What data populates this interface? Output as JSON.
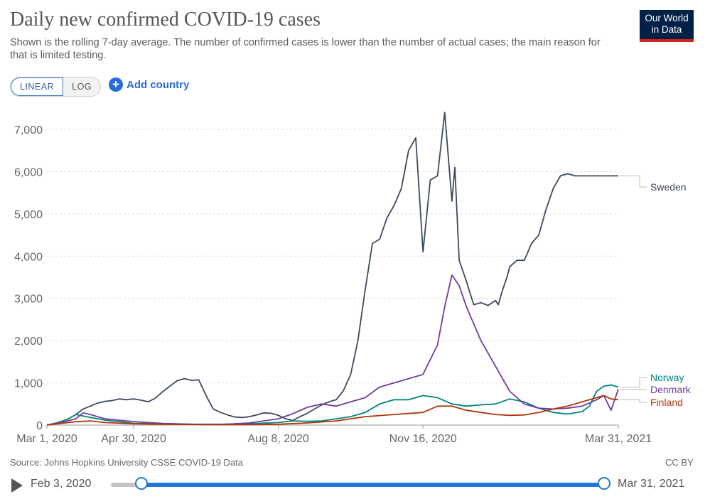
{
  "header": {
    "title": "Daily new confirmed COVID-19 cases",
    "subtitle": "Shown is the rolling 7-day average. The number of confirmed cases is lower than the number of actual cases; the main reason for that is limited testing."
  },
  "logo": {
    "line1": "Our World",
    "line2": "in Data"
  },
  "controls": {
    "linear_label": "LINEAR",
    "log_label": "LOG",
    "add_country_label": "Add country",
    "add_icon": "+"
  },
  "footer": {
    "source": "Source: Johns Hopkins University CSSE COVID-19 Data",
    "license": "CC BY"
  },
  "timeline": {
    "start_label": "Feb 3, 2020",
    "end_label": "Mar 31, 2021",
    "selected_start_fraction": 0.062
  },
  "colors": {
    "Sweden": "#3c4a5c",
    "Norway": "#00847e",
    "Denmark": "#6e3e9d",
    "Finland": "#b13507",
    "grid": "#d9d9d9",
    "axis": "#666666"
  },
  "chart_data": {
    "type": "line",
    "title": "Daily new confirmed COVID-19 cases",
    "x_unit": "days since Mar 1, 2020",
    "x_range": [
      0,
      395
    ],
    "ylim": [
      0,
      7000
    ],
    "y_ticks": [
      0,
      1000,
      2000,
      3000,
      4000,
      5000,
      6000,
      7000
    ],
    "y_tick_labels": [
      "0",
      "1,000",
      "2,000",
      "3,000",
      "4,000",
      "5,000",
      "6,000",
      "7,000"
    ],
    "x_ticks": [
      0,
      60,
      160,
      260,
      395
    ],
    "x_tick_labels": [
      "Mar 1, 2020",
      "Apr 30, 2020",
      "Aug 8, 2020",
      "Nov 16, 2020",
      "Mar 31, 2021"
    ],
    "series": [
      {
        "name": "Sweden",
        "label": "Sweden",
        "x": [
          0,
          5,
          10,
          15,
          20,
          25,
          30,
          35,
          40,
          45,
          50,
          55,
          60,
          65,
          70,
          75,
          80,
          85,
          90,
          95,
          100,
          105,
          110,
          115,
          120,
          125,
          130,
          135,
          140,
          145,
          150,
          155,
          160,
          165,
          170,
          175,
          180,
          185,
          190,
          195,
          200,
          205,
          210,
          215,
          220,
          225,
          230,
          235,
          240,
          245,
          250,
          255,
          260,
          265,
          270,
          275,
          280,
          282,
          285,
          290,
          295,
          300,
          305,
          310,
          312,
          315,
          318,
          320,
          325,
          330,
          335,
          340,
          345,
          350,
          355,
          360,
          365,
          370,
          375,
          380,
          385,
          390,
          395
        ],
        "y": [
          0,
          30,
          90,
          150,
          250,
          380,
          450,
          520,
          560,
          580,
          620,
          600,
          620,
          590,
          550,
          640,
          790,
          920,
          1050,
          1100,
          1060,
          1070,
          700,
          380,
          300,
          240,
          190,
          180,
          200,
          240,
          290,
          280,
          230,
          150,
          110,
          200,
          280,
          380,
          480,
          550,
          600,
          820,
          1200,
          2000,
          3200,
          4300,
          4400,
          4900,
          5200,
          5600,
          6500,
          6800,
          4100,
          5800,
          5900,
          7400,
          5300,
          6100,
          3900,
          3400,
          2850,
          2900,
          2830,
          2950,
          2850,
          3200,
          3500,
          3750,
          3900,
          3900,
          4300,
          4500,
          5100,
          5600,
          5900,
          5950,
          5900,
          5900,
          5900,
          5900,
          5900,
          5900,
          5900
        ]
      },
      {
        "name": "Norway",
        "label": "Norway",
        "x": [
          0,
          10,
          15,
          20,
          30,
          40,
          60,
          80,
          100,
          120,
          140,
          160,
          170,
          180,
          190,
          200,
          210,
          220,
          230,
          240,
          250,
          260,
          270,
          280,
          290,
          300,
          310,
          320,
          330,
          340,
          350,
          360,
          370,
          375,
          380,
          385,
          390,
          395
        ],
        "y": [
          0,
          80,
          150,
          250,
          180,
          120,
          40,
          30,
          20,
          20,
          30,
          60,
          100,
          90,
          100,
          150,
          200,
          300,
          500,
          600,
          600,
          700,
          650,
          500,
          450,
          480,
          500,
          620,
          550,
          400,
          300,
          260,
          320,
          450,
          800,
          920,
          950,
          900
        ]
      },
      {
        "name": "Denmark",
        "label": "Denmark",
        "x": [
          0,
          10,
          20,
          25,
          30,
          40,
          60,
          80,
          100,
          120,
          140,
          150,
          160,
          170,
          180,
          190,
          200,
          210,
          220,
          230,
          240,
          250,
          255,
          260,
          270,
          275,
          280,
          285,
          290,
          295,
          300,
          310,
          320,
          330,
          340,
          350,
          360,
          370,
          380,
          385,
          390,
          395
        ],
        "y": [
          0,
          60,
          150,
          290,
          250,
          150,
          80,
          40,
          20,
          15,
          50,
          100,
          150,
          270,
          420,
          500,
          450,
          550,
          650,
          900,
          1000,
          1100,
          1150,
          1200,
          1900,
          2800,
          3550,
          3300,
          2800,
          2400,
          2000,
          1400,
          800,
          500,
          400,
          380,
          400,
          450,
          600,
          700,
          350,
          850
        ]
      },
      {
        "name": "Finland",
        "label": "Finland",
        "x": [
          0,
          10,
          20,
          30,
          40,
          60,
          80,
          100,
          120,
          140,
          160,
          180,
          200,
          220,
          240,
          260,
          270,
          280,
          290,
          300,
          310,
          320,
          330,
          340,
          350,
          360,
          370,
          380,
          385,
          390,
          395
        ],
        "y": [
          0,
          40,
          80,
          100,
          60,
          30,
          20,
          15,
          10,
          10,
          20,
          50,
          100,
          200,
          250,
          300,
          450,
          450,
          350,
          300,
          250,
          230,
          240,
          300,
          380,
          450,
          550,
          650,
          700,
          620,
          600
        ]
      }
    ]
  }
}
